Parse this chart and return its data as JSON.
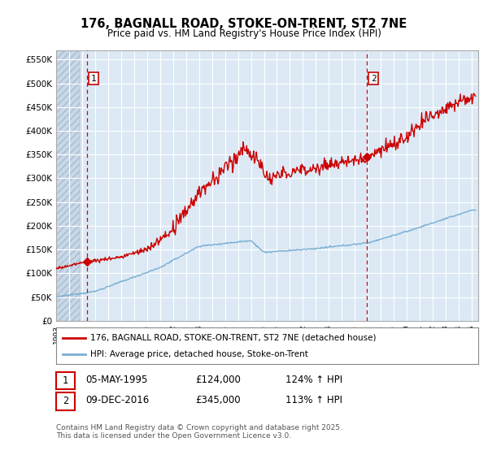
{
  "title": "176, BAGNALL ROAD, STOKE-ON-TRENT, ST2 7NE",
  "subtitle": "Price paid vs. HM Land Registry's House Price Index (HPI)",
  "ylim": [
    0,
    570000
  ],
  "yticks": [
    0,
    50000,
    100000,
    150000,
    200000,
    250000,
    300000,
    350000,
    400000,
    450000,
    500000,
    550000
  ],
  "ytick_labels": [
    "£0",
    "£50K",
    "£100K",
    "£150K",
    "£200K",
    "£250K",
    "£300K",
    "£350K",
    "£400K",
    "£450K",
    "£500K",
    "£550K"
  ],
  "xlim_start": 1993.0,
  "xlim_end": 2025.5,
  "background_color": "#dce9f5",
  "hatch_color": "#c8d8e8",
  "grid_color": "#ffffff",
  "red_line_color": "#cc0000",
  "blue_line_color": "#7aafd4",
  "ann1_x": 1995.35,
  "ann1_y": 124000,
  "ann2_x": 2016.93,
  "ann2_y": 345000,
  "legend_line1": "176, BAGNALL ROAD, STOKE-ON-TRENT, ST2 7NE (detached house)",
  "legend_line2": "HPI: Average price, detached house, Stoke-on-Trent",
  "footnote": "Contains HM Land Registry data © Crown copyright and database right 2025.\nThis data is licensed under the Open Government Licence v3.0.",
  "table_row1": [
    "1",
    "05-MAY-1995",
    "£124,000",
    "124% ↑ HPI"
  ],
  "table_row2": [
    "2",
    "09-DEC-2016",
    "£345,000",
    "113% ↑ HPI"
  ]
}
